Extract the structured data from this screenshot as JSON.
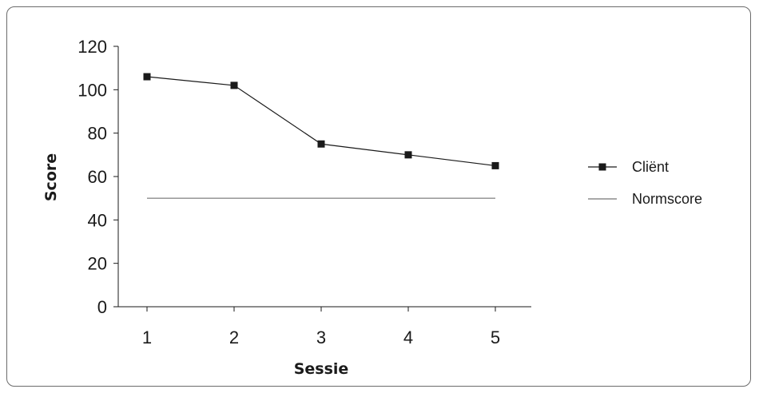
{
  "chart_data": {
    "type": "line",
    "title": "",
    "xlabel": "Sessie",
    "ylabel": "Score",
    "categories": [
      "1",
      "2",
      "3",
      "4",
      "5"
    ],
    "ylim": [
      0,
      120
    ],
    "yticks": [
      "0",
      "20",
      "40",
      "60",
      "80",
      "100",
      "120"
    ],
    "grid": false,
    "legend_position": "right",
    "series": [
      {
        "name": "Cliënt",
        "values": [
          106,
          102,
          75,
          70,
          65
        ],
        "color": "#1a1a1a",
        "marker": "square"
      },
      {
        "name": "Normscore",
        "values": [
          50,
          50,
          50,
          50,
          50
        ],
        "color": "#8c8c8c",
        "marker": "none"
      }
    ]
  }
}
